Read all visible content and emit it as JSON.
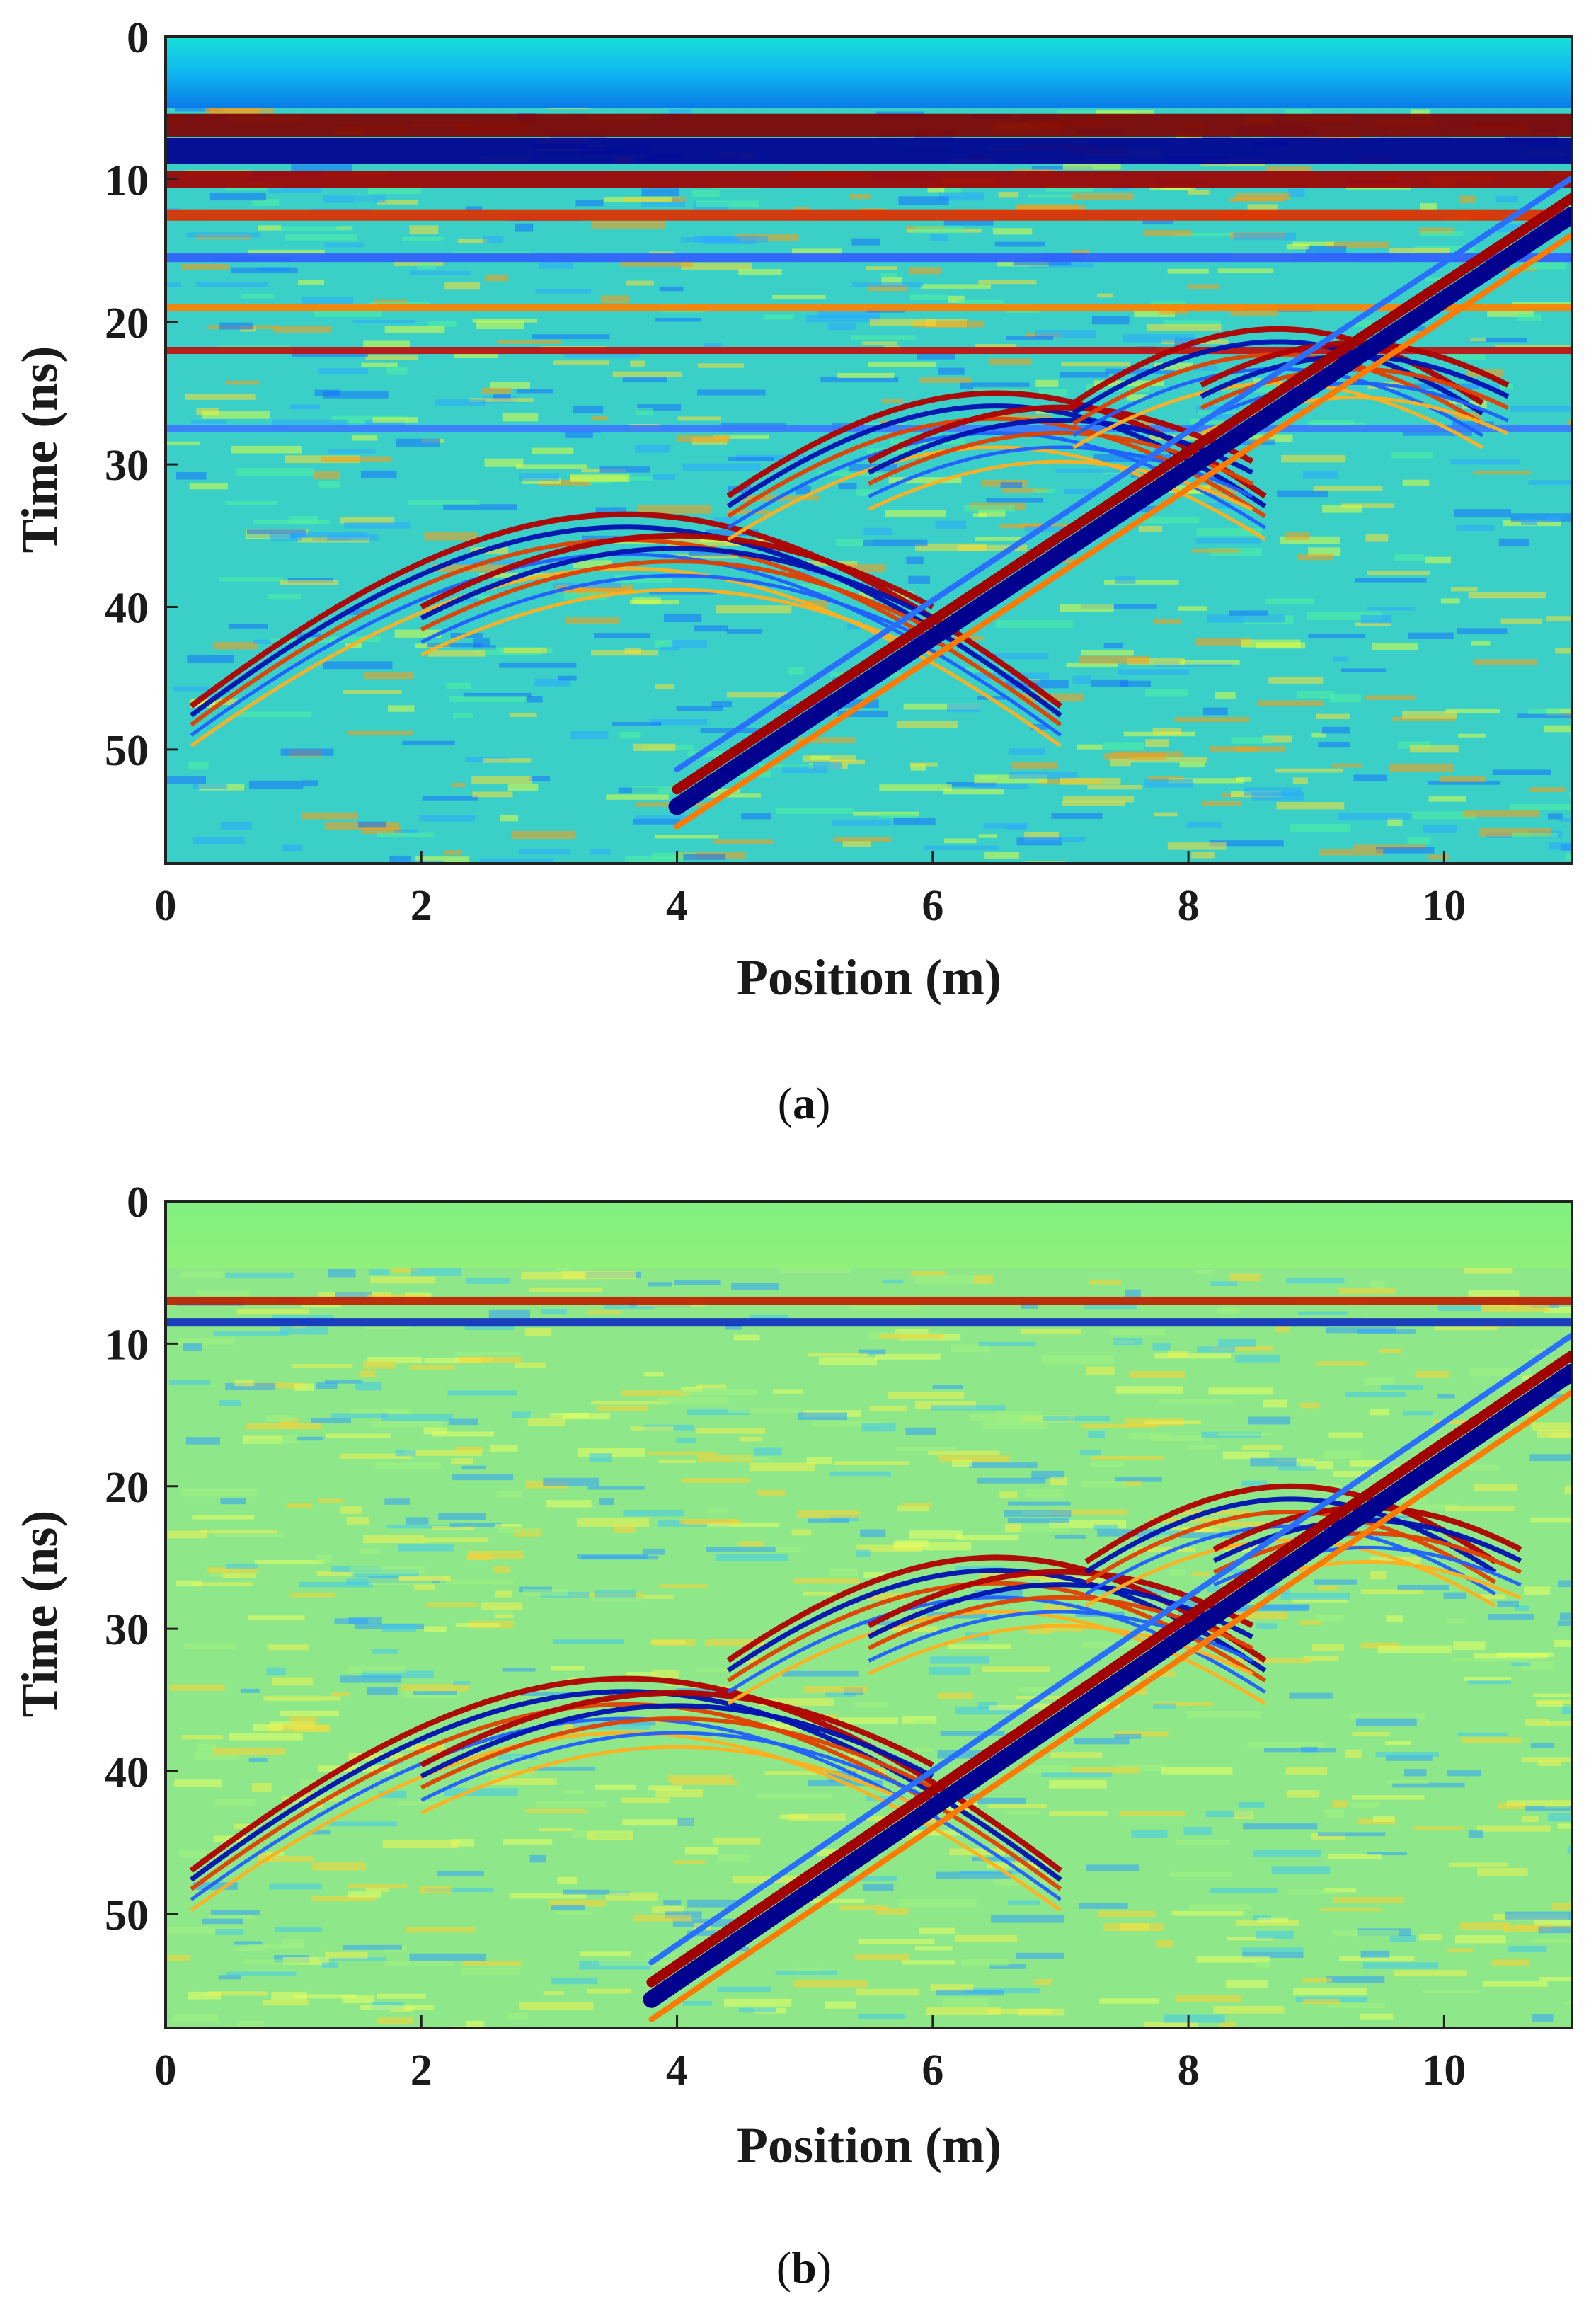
{
  "chart_data": [
    {
      "type": "heatmap",
      "panel_label": "(a)",
      "panel_letter": "a",
      "xlabel": "Position (m)",
      "ylabel": "Time (ns)",
      "xlim": [
        0,
        11
      ],
      "ylim": [
        58,
        0
      ],
      "xticks": [
        0,
        2,
        4,
        6,
        8,
        10
      ],
      "yticks": [
        0,
        10,
        20,
        30,
        40,
        50
      ],
      "colormap": "jet",
      "grid": false,
      "horizontal_bands": [
        {
          "t": 6.2,
          "color": "#800000",
          "width": 1.6
        },
        {
          "t": 8.0,
          "color": "#00008f",
          "width": 1.8
        },
        {
          "t": 10.0,
          "color": "#a00000",
          "width": 1.2
        },
        {
          "t": 12.5,
          "color": "#e03000",
          "width": 0.8
        },
        {
          "t": 15.5,
          "color": "#3060ff",
          "width": 0.6
        },
        {
          "t": 19.0,
          "color": "#ff8000",
          "width": 0.5
        },
        {
          "t": 22.0,
          "color": "#c01010",
          "width": 0.5
        },
        {
          "t": 27.5,
          "color": "#3a7bff",
          "width": 0.5
        }
      ],
      "hyperbolas": [
        {
          "x0": 3.6,
          "t0": 33.5,
          "span": 3.4
        },
        {
          "x0": 4.0,
          "t0": 35.0,
          "span": 2.0
        },
        {
          "x0": 6.5,
          "t0": 25.0,
          "span": 2.1
        },
        {
          "x0": 7.0,
          "t0": 26.0,
          "span": 1.5
        },
        {
          "x0": 8.7,
          "t0": 20.5,
          "span": 1.6
        },
        {
          "x0": 9.3,
          "t0": 21.5,
          "span": 1.2
        }
      ],
      "direct_wave": {
        "x_start": 4.0,
        "t_start": 54.0,
        "x_end": 11.0,
        "t_end": 12.5
      }
    },
    {
      "type": "heatmap",
      "panel_label": "(b)",
      "panel_letter": "b",
      "xlabel": "Position (m)",
      "ylabel": "Time (ns)",
      "xlim": [
        0,
        11
      ],
      "ylim": [
        58,
        0
      ],
      "xticks": [
        0,
        2,
        4,
        6,
        8,
        10
      ],
      "yticks": [
        0,
        10,
        20,
        30,
        40,
        50
      ],
      "colormap": "jet",
      "grid": false,
      "horizontal_bands": [
        {
          "t": 7.0,
          "color": "#c02000",
          "width": 0.6
        },
        {
          "t": 8.5,
          "color": "#1030c0",
          "width": 0.6
        }
      ],
      "hyperbolas": [
        {
          "x0": 3.6,
          "t0": 33.5,
          "span": 3.4
        },
        {
          "x0": 4.0,
          "t0": 34.5,
          "span": 2.0
        },
        {
          "x0": 6.5,
          "t0": 25.0,
          "span": 2.1
        },
        {
          "x0": 7.0,
          "t0": 26.0,
          "span": 1.5
        },
        {
          "x0": 8.8,
          "t0": 20.0,
          "span": 1.6
        },
        {
          "x0": 9.4,
          "t0": 21.5,
          "span": 1.2
        }
      ],
      "direct_wave": {
        "x_start": 3.8,
        "t_start": 56.0,
        "x_end": 11.0,
        "t_end": 12.0
      }
    }
  ]
}
